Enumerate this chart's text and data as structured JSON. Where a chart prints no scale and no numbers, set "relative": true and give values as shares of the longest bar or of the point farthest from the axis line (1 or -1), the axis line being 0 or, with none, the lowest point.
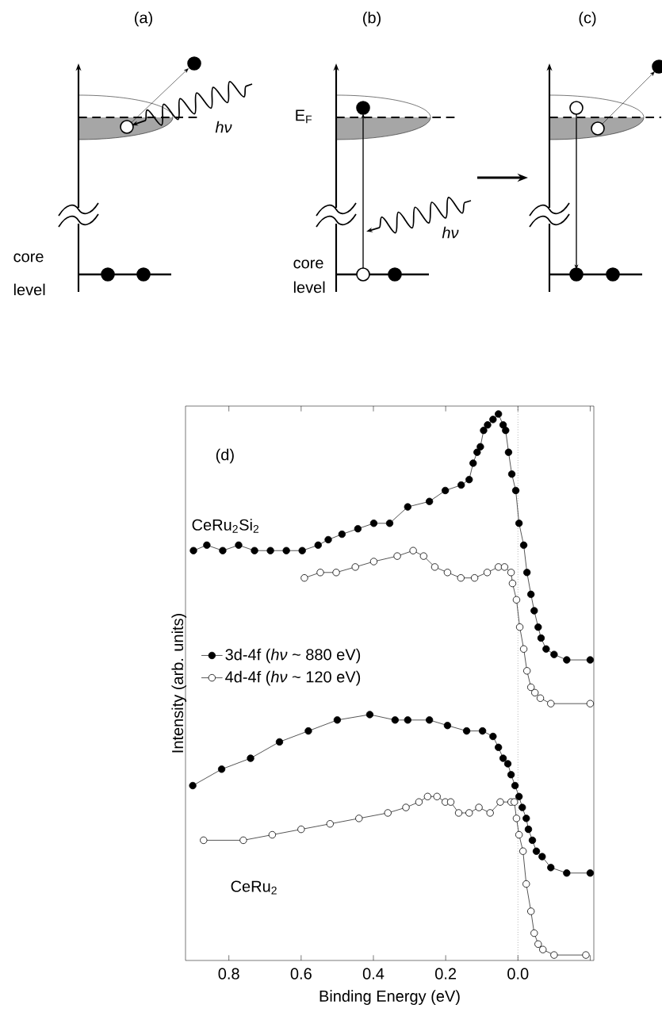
{
  "chart_data": {
    "type": "line",
    "relative": true,
    "xlabel": "Binding Energy (eV)",
    "ylabel": "Intensity (arb. units)",
    "xlim": [
      0.92,
      -0.21
    ],
    "xticks": [
      0.8,
      0.6,
      0.4,
      0.2,
      {
        "value": 0,
        "label": "0.0"
      },
      {
        "value": -0.2,
        "label": null
      }
    ],
    "marker": "circle",
    "line_style": "solid",
    "legend": "left",
    "ref_lines": [
      {
        "axis": "x",
        "value": 0,
        "line_style": "dotted"
      }
    ],
    "annotations": [
      "(a)",
      "(b)",
      "(c)",
      "*hν*",
      "core",
      "level",
      "E$_{F}$",
      "*hν*",
      "core",
      "level",
      "(d)",
      "CeRu$_{2}$Si$_{2}$",
      "CeRu$_{2}$"
    ],
    "series": [
      {
        "name": "3d-4f (*hν* ~ 880 eV)",
        "color": "#000000",
        "x": [
          0.898,
          0.861,
          0.817,
          0.773,
          0.729,
          0.685,
          0.641,
          0.597,
          0.553,
          0.525,
          0.487,
          0.443,
          0.399,
          0.355,
          0.305,
          0.245,
          0.201,
          0.157,
          0.135,
          0.124,
          0.113,
          0.104,
          0.095,
          0.084,
          0.069,
          0.054,
          0.041,
          0.034,
          0.026,
          0.017,
          0.006,
          -0.003,
          -0.016,
          -0.025,
          -0.036,
          -0.045,
          -0.056,
          -0.064,
          -0.078,
          -0.1,
          -0.135,
          -0.2
        ],
        "values": [
          0.75,
          0.76,
          0.75,
          0.76,
          0.75,
          0.75,
          0.75,
          0.75,
          0.76,
          0.77,
          0.78,
          0.79,
          0.8,
          0.8,
          0.83,
          0.84,
          0.86,
          0.87,
          0.88,
          0.91,
          0.93,
          0.94,
          0.97,
          0.98,
          0.99,
          1.0,
          0.98,
          0.97,
          0.93,
          0.89,
          0.86,
          0.8,
          0.76,
          0.71,
          0.67,
          0.64,
          0.61,
          0.59,
          0.57,
          0.56,
          0.55,
          0.55
        ]
      },
      {
        "name": "4d-4f (*hν* ~ 120 eV)",
        "color": "#ffffff",
        "x": [
          0.591,
          0.547,
          0.503,
          0.45,
          0.399,
          0.334,
          0.29,
          0.261,
          0.23,
          0.195,
          0.158,
          0.12,
          0.085,
          0.054,
          0.037,
          0.019,
          0.015,
          0.004,
          -0.005,
          -0.016,
          -0.025,
          -0.036,
          -0.047,
          -0.062,
          -0.091,
          -0.2
        ],
        "values": [
          0.7,
          0.71,
          0.71,
          0.72,
          0.73,
          0.74,
          0.75,
          0.74,
          0.72,
          0.71,
          0.7,
          0.7,
          0.71,
          0.72,
          0.72,
          0.71,
          0.69,
          0.66,
          0.61,
          0.57,
          0.53,
          0.5,
          0.49,
          0.48,
          0.47,
          0.47
        ]
      },
      {
        "color": "#000000",
        "x": [
          0.9,
          0.82,
          0.74,
          0.66,
          0.58,
          0.5,
          0.41,
          0.34,
          0.305,
          0.245,
          0.195,
          0.142,
          0.098,
          0.069,
          0.054,
          0.041,
          0.028,
          0.019,
          0.008,
          -0.003,
          -0.012,
          -0.023,
          -0.029,
          -0.04,
          -0.051,
          -0.067,
          -0.091,
          -0.135,
          -0.2
        ],
        "values": [
          0.32,
          0.35,
          0.37,
          0.4,
          0.42,
          0.44,
          0.45,
          0.44,
          0.44,
          0.44,
          0.43,
          0.42,
          0.42,
          0.41,
          0.39,
          0.37,
          0.36,
          0.34,
          0.32,
          0.3,
          0.28,
          0.26,
          0.24,
          0.22,
          0.2,
          0.19,
          0.17,
          0.16,
          0.16
        ]
      },
      {
        "color": "#ffffff",
        "x": [
          0.87,
          0.76,
          0.68,
          0.6,
          0.52,
          0.44,
          0.36,
          0.31,
          0.274,
          0.25,
          0.224,
          0.201,
          0.186,
          0.164,
          0.135,
          0.108,
          0.077,
          0.049,
          0.019,
          0.01,
          0.004,
          -0.003,
          -0.014,
          -0.023,
          -0.036,
          -0.045,
          -0.056,
          -0.069,
          -0.1,
          -0.188
        ],
        "values": [
          0.22,
          0.22,
          0.23,
          0.24,
          0.25,
          0.26,
          0.27,
          0.28,
          0.29,
          0.3,
          0.3,
          0.29,
          0.29,
          0.27,
          0.27,
          0.28,
          0.27,
          0.29,
          0.29,
          0.29,
          0.26,
          0.23,
          0.2,
          0.14,
          0.09,
          0.05,
          0.03,
          0.02,
          0.01,
          0.01
        ]
      }
    ]
  }
}
